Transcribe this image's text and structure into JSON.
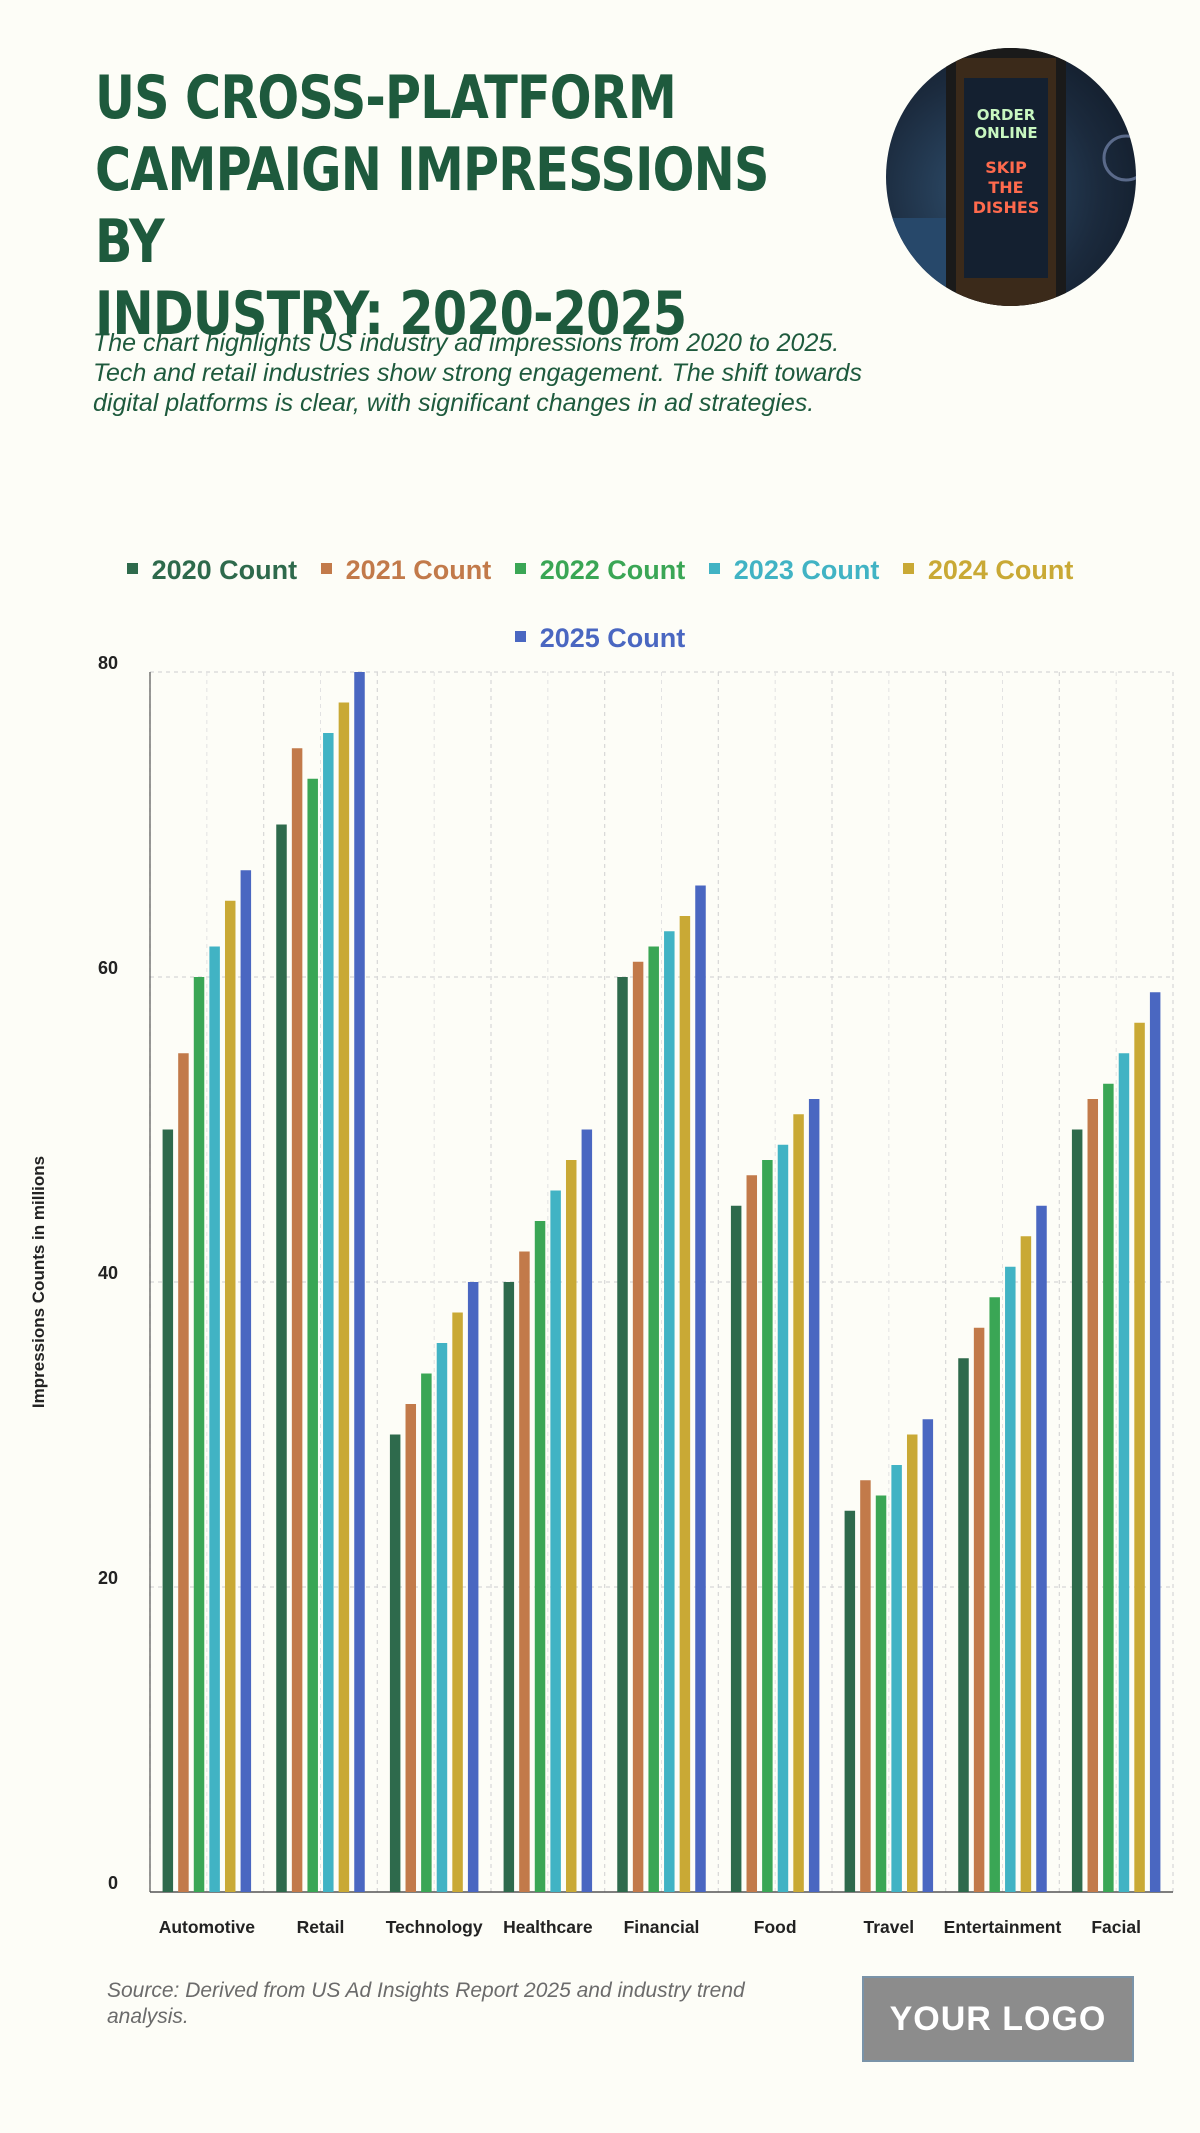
{
  "header": {
    "title_lines": [
      "US CROSS-PLATFORM",
      "CAMPAIGN IMPRESSIONS BY",
      "INDUSTRY: 2020-2025"
    ],
    "subtitle": "The chart highlights US industry ad impressions from 2020 to 2025. Tech and retail industries show strong engagement. The shift towards digital platforms is clear, with significant changes in ad strategies."
  },
  "photo": {
    "sign_top": "ORDER ONLINE",
    "sign_bottom": "SKIP THE DISHES"
  },
  "colors": {
    "2020": "#2e6a4c",
    "2021": "#c27a4a",
    "2022": "#3aa655",
    "2023": "#41b3c4",
    "2024": "#c9a935",
    "2025": "#4a67c1"
  },
  "chart_data": {
    "type": "bar",
    "title": "US Cross-Platform Campaign Impressions by Industry: 2020-2025",
    "xlabel": "",
    "ylabel": "Impressions Counts in millions",
    "ylim": [
      0,
      80
    ],
    "yticks": [
      0,
      20,
      40,
      60,
      80
    ],
    "grid": true,
    "legend_position": "top",
    "categories": [
      "Automotive",
      "Retail",
      "Technology",
      "Healthcare",
      "Financial",
      "Food",
      "Travel",
      "Entertainment",
      "Facial"
    ],
    "series": [
      {
        "name": "2020 Count",
        "key": "2020",
        "values": [
          50,
          70,
          30,
          40,
          60,
          45,
          25,
          35,
          50
        ]
      },
      {
        "name": "2021 Count",
        "key": "2021",
        "values": [
          55,
          75,
          32,
          42,
          61,
          47,
          27,
          37,
          52
        ]
      },
      {
        "name": "2022 Count",
        "key": "2022",
        "values": [
          60,
          73,
          34,
          44,
          62,
          48,
          26,
          39,
          53
        ]
      },
      {
        "name": "2023 Count",
        "key": "2023",
        "values": [
          62,
          76,
          36,
          46,
          63,
          49,
          28,
          41,
          55
        ]
      },
      {
        "name": "2024 Count",
        "key": "2024",
        "values": [
          65,
          78,
          38,
          48,
          64,
          51,
          30,
          43,
          57
        ]
      },
      {
        "name": "2025 Count",
        "key": "2025",
        "values": [
          67,
          80,
          40,
          50,
          66,
          52,
          31,
          45,
          59
        ]
      }
    ]
  },
  "footer": {
    "source": "Source: Derived from US Ad Insights Report 2025 and industry trend analysis.",
    "logo_text": "YOUR LOGO"
  }
}
